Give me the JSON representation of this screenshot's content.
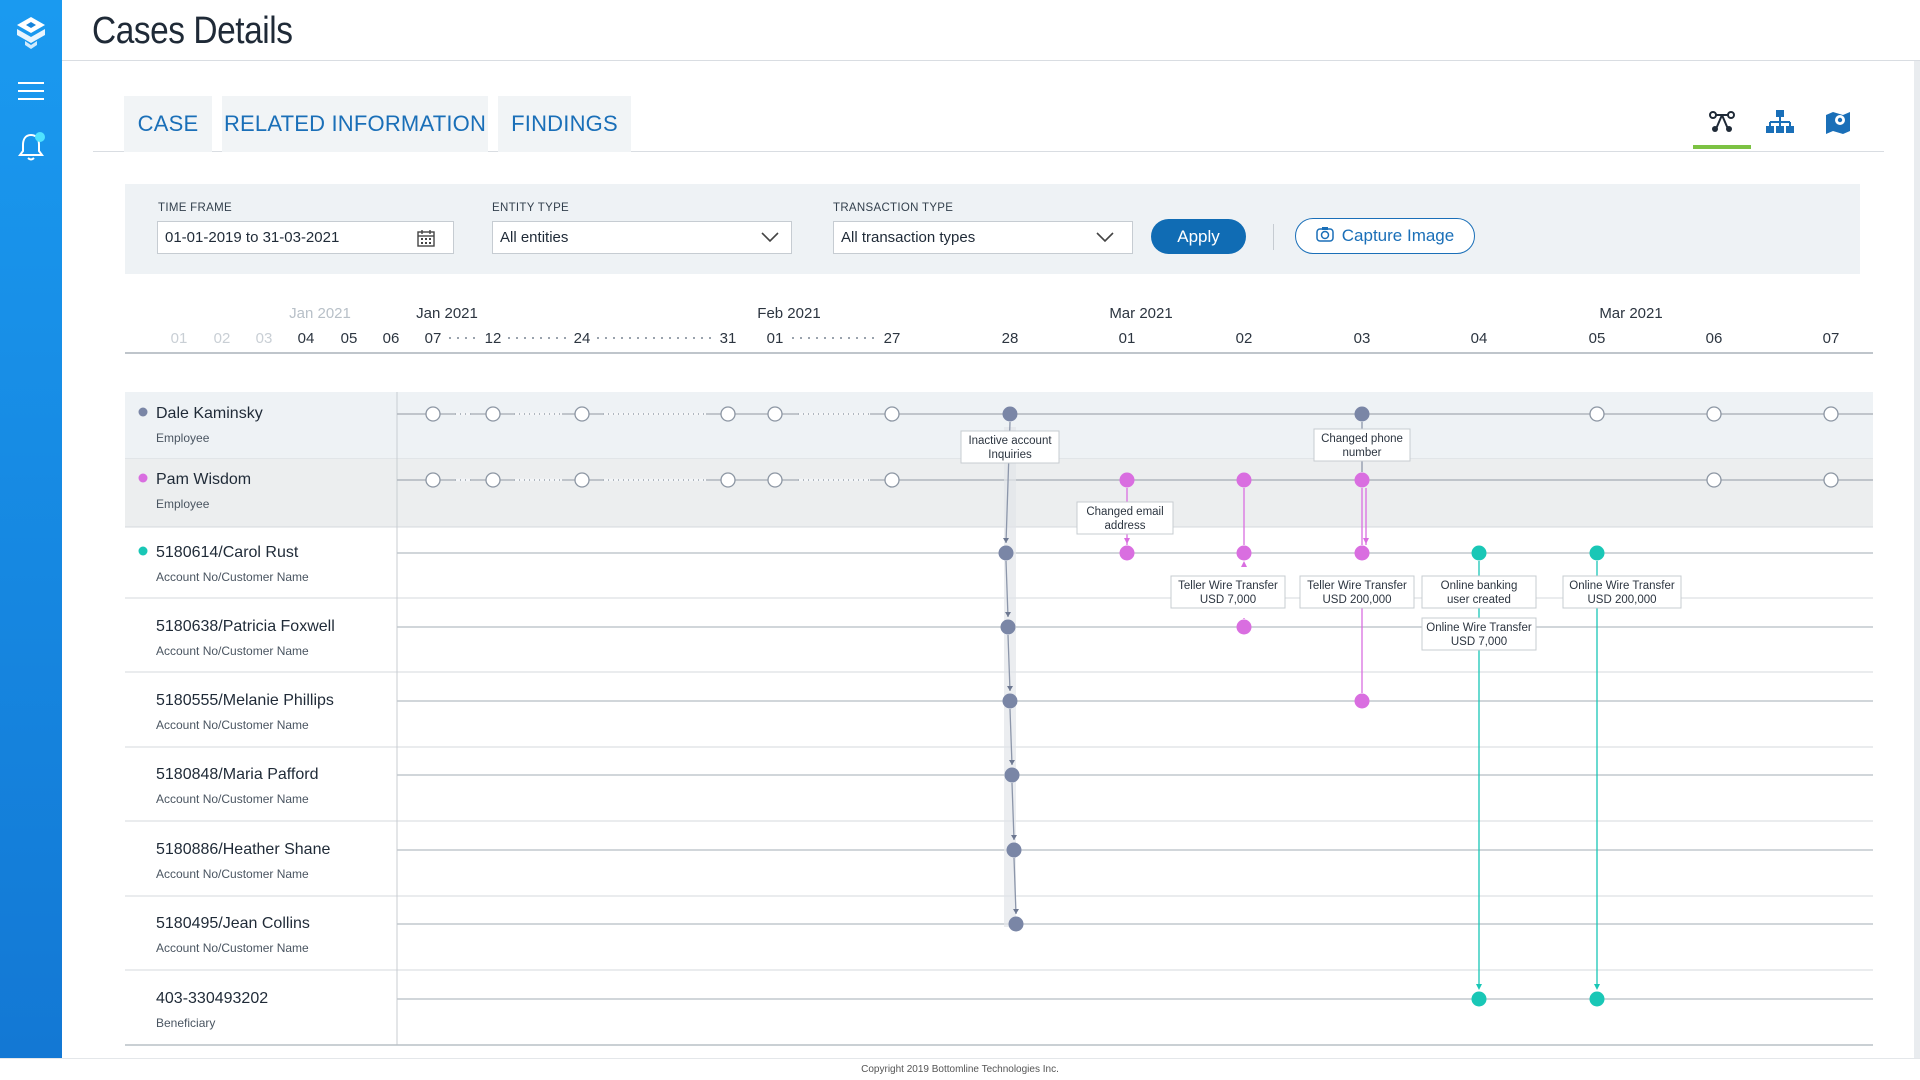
{
  "app": {
    "title": "Cases Details"
  },
  "sidebar": {
    "icons": [
      "logo-icon",
      "menu-icon",
      "bell-icon"
    ],
    "accent": "#1a9af0",
    "notification_dot_color": "#4fe3ff"
  },
  "tabs": [
    {
      "label": "CASE"
    },
    {
      "label": "RELATED INFORMATION"
    },
    {
      "label": "FINDINGS"
    }
  ],
  "view_icons": [
    "timeline-view-icon",
    "hierarchy-view-icon",
    "map-view-icon"
  ],
  "filters": {
    "time_frame": {
      "label": "TIME  FRAME",
      "value": "01-01-2019 to 31-03-2021"
    },
    "entity_type": {
      "label": "ENTITY TYPE",
      "value": "All entities"
    },
    "transaction_type": {
      "label": "TRANSACTION TYPE",
      "value": "All transaction types"
    },
    "apply_label": "Apply",
    "capture_label": "Capture Image"
  },
  "timeline": {
    "colors": {
      "employee": "#7a86a6",
      "pink": "#d96ee0",
      "teal": "#19c7b6",
      "empty": "#ffffff"
    },
    "month_labels": [
      {
        "text": "Jan 2021",
        "col": 4,
        "faded": true
      },
      {
        "text": "Jan 2021",
        "col": 7,
        "faded": false
      },
      {
        "text": "Feb 2021",
        "col": 11,
        "faded": false
      },
      {
        "text": "Mar 2021",
        "col": 14,
        "faded": false
      },
      {
        "text": "Mar 2021",
        "col": 18,
        "faded": false
      }
    ],
    "day_labels": [
      {
        "text": "01",
        "faded": true
      },
      {
        "text": "02",
        "faded": true
      },
      {
        "text": "03",
        "faded": true
      },
      {
        "text": "04",
        "faded": false
      },
      {
        "text": "05",
        "faded": false
      },
      {
        "text": "06",
        "faded": false
      },
      {
        "text": "07",
        "faded": false
      },
      {
        "text": "12",
        "faded": false
      },
      {
        "text": "24",
        "faded": false
      },
      {
        "text": "31",
        "faded": false
      },
      {
        "text": "01",
        "faded": false
      },
      {
        "text": "27",
        "faded": false
      },
      {
        "text": "28",
        "faded": false
      },
      {
        "text": "01",
        "faded": false
      },
      {
        "text": "02",
        "faded": false
      },
      {
        "text": "03",
        "faded": false
      },
      {
        "text": "04",
        "faded": false
      },
      {
        "text": "05",
        "faded": false
      },
      {
        "text": "06",
        "faded": false
      },
      {
        "text": "07",
        "faded": false
      }
    ],
    "entities": [
      {
        "name": "Dale Kaminsky",
        "type": "Employee",
        "dot": "#7a86a6",
        "shaded": true
      },
      {
        "name": "Pam Wisdom",
        "type": "Employee",
        "dot": "#d96ee0",
        "shaded": true
      },
      {
        "name": "5180614/Carol Rust",
        "type": "Account No/Customer Name",
        "dot": "#19c7b6",
        "shaded": false
      },
      {
        "name": "5180638/Patricia Foxwell",
        "type": "Account No/Customer Name",
        "dot": null,
        "shaded": false
      },
      {
        "name": "5180555/Melanie  Phillips",
        "type": "Account No/Customer Name",
        "dot": null,
        "shaded": false
      },
      {
        "name": "5180848/Maria Pafford",
        "type": "Account No/Customer Name",
        "dot": null,
        "shaded": false
      },
      {
        "name": "5180886/Heather Shane",
        "type": "Account No/Customer Name",
        "dot": null,
        "shaded": false
      },
      {
        "name": "5180495/Jean Collins",
        "type": "Account No/Customer Name",
        "dot": null,
        "shaded": false
      },
      {
        "name": "403-330493202",
        "type": "Beneficiary",
        "dot": null,
        "shaded": false
      }
    ],
    "events": [
      {
        "label": [
          "Inactive account",
          "Inquiries"
        ]
      },
      {
        "label": [
          "Changed phone",
          "number"
        ]
      },
      {
        "label": [
          "Changed email",
          "address"
        ]
      },
      {
        "label": [
          "Teller Wire Transfer",
          "USD 7,000"
        ]
      },
      {
        "label": [
          "Teller Wire Transfer",
          "USD 200,000"
        ]
      },
      {
        "label": [
          "Online banking",
          "user created"
        ]
      },
      {
        "label": [
          "Online Wire Transfer",
          "USD 200,000"
        ]
      },
      {
        "label": [
          "Online Wire Transfer",
          "USD 7,000"
        ]
      }
    ]
  },
  "footer": {
    "copyright": "Copyright 2019 Bottomline Technologies Inc."
  }
}
